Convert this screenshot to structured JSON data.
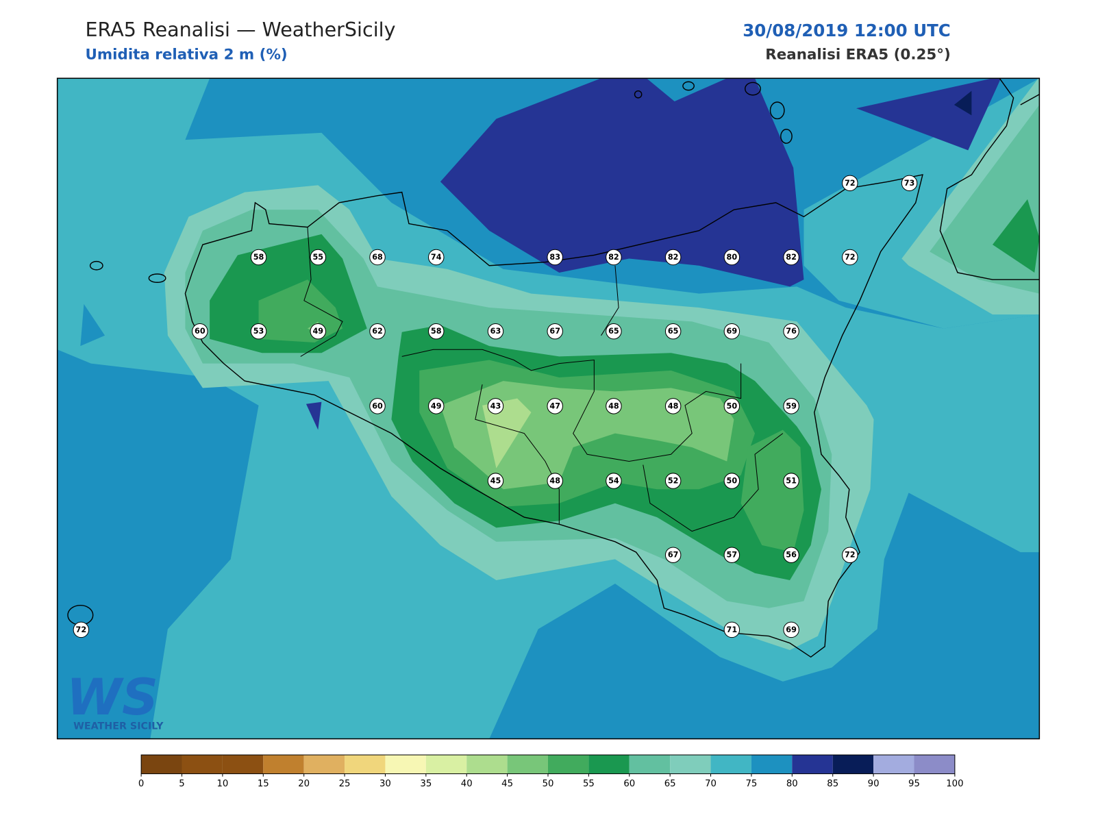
{
  "header": {
    "title": "ERA5 Reanalisi — WeatherSicily",
    "subtitle": "Umidita relativa 2 m (%)",
    "datetime": "30/08/2019 12:00 UTC",
    "source": "Reanalisi ERA5 (0.25°)"
  },
  "stations": [
    72,
    73,
    58,
    55,
    68,
    74,
    83,
    82,
    82,
    80,
    82,
    72,
    60,
    53,
    49,
    62,
    58,
    63,
    67,
    65,
    65,
    69,
    76,
    60,
    49,
    43,
    47,
    48,
    48,
    50,
    59,
    45,
    48,
    54,
    52,
    50,
    51,
    67,
    57,
    56,
    72,
    72,
    71,
    69
  ],
  "colorbar": {
    "ticks": [
      0,
      5,
      10,
      15,
      20,
      25,
      30,
      35,
      40,
      45,
      50,
      55,
      60,
      65,
      70,
      75,
      80,
      85,
      90,
      95,
      100
    ],
    "colors": [
      "#7a4510",
      "#8c5012",
      "#8c5012",
      "#c0802e",
      "#e0b060",
      "#f0d67c",
      "#f7f7b4",
      "#d9f0a3",
      "#addd8e",
      "#78c679",
      "#41ab5d",
      "#1a9850",
      "#62c0a0",
      "#7fcdbb",
      "#41b6c4",
      "#1d91c0",
      "#253494",
      "#081d58",
      "#a3acdf",
      "#8c8cc8"
    ]
  },
  "logo": {
    "letters": "WS",
    "name": "WEATHER SICILY"
  }
}
